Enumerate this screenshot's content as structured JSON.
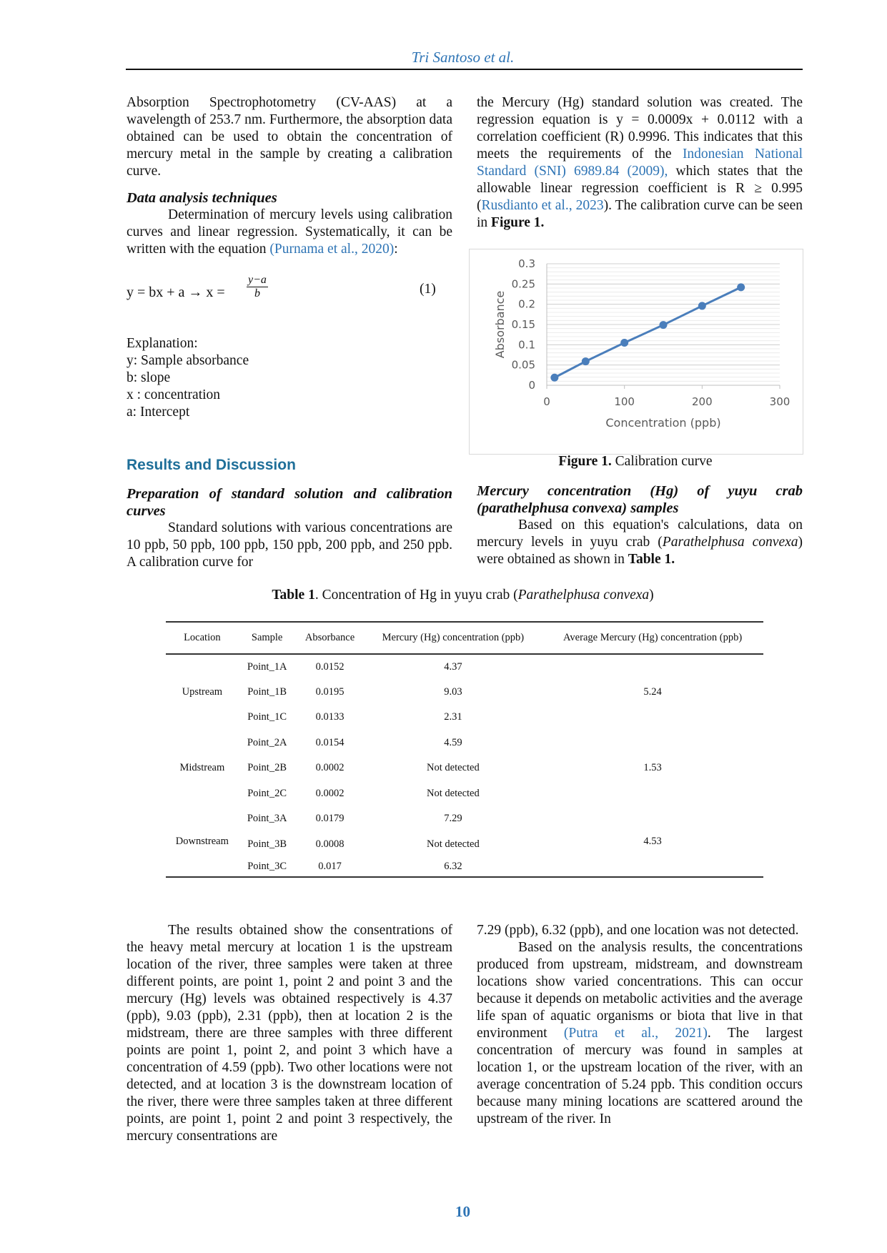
{
  "header": {
    "running_title": "Tri Santoso et al.",
    "page_number": "10"
  },
  "left_top": {
    "p1": "Absorption Spectrophotometry (CV-AAS) at a wavelength of 253.7 nm. Furthermore, the absorption data obtained can be used to obtain the concentration of mercury metal in the sample by creating a calibration curve.",
    "heading": "Data analysis techniques",
    "p2_a": "Determination of mercury levels using calibration curves and linear regression. Systematically, it can be written with the equation ",
    "p2_cite": "(Purnama et al., 2020)",
    "p2_b": ":",
    "equation": {
      "lhs": "y = bx + a →  x = ",
      "num": "y−a",
      "den": "b",
      "number": "(1)"
    },
    "explanation": [
      "Explanation:",
      "y: Sample absorbance",
      "b: slope",
      "x : concentration",
      "a: Intercept"
    ],
    "section": "Results and Discussion",
    "sub": "Preparation of standard solution and calibration curves",
    "p3": "Standard solutions with various concentrations are 10 ppb, 50 ppb, 100 ppb, 150 ppb, 200 ppb, and 250 ppb. A calibration curve for"
  },
  "right_top": {
    "p1_a": "the Mercury (Hg) standard solution was created. The regression equation is y = 0.0009x + 0.0112 with a correlation coefficient (R) 0.9996. This indicates that this meets the requirements of the ",
    "p1_cite1": "Indonesian National Standard (SNI) 6989.84 (2009),",
    "p1_b": " which states that the allowable linear regression coefficient is R ≥ 0.995 (",
    "p1_cite2": "Rusdianto et al., 2023",
    "p1_c": "). The calibration curve can be seen in ",
    "p1_fig": "Figure 1.",
    "fig_caption_bold": "Figure 1.",
    "fig_caption": " Calibration curve",
    "sub": "Mercury concentration (Hg) of yuyu crab (parathelphusa convexa) samples",
    "p2_a": "Based on this equation's calculations, data on mercury levels in yuyu crab (",
    "p2_species": "Parathelphusa convexa",
    "p2_b": ") were obtained as shown in ",
    "p2_table": "Table 1."
  },
  "chart_data": {
    "type": "line",
    "title": "",
    "xlabel": "Concentration (ppb)",
    "ylabel": "Absorbance",
    "xlim": [
      0,
      300
    ],
    "ylim": [
      0,
      0.3
    ],
    "xticks": [
      "0",
      "100",
      "200",
      "300"
    ],
    "yticks": [
      "0",
      "0.05",
      "0.1",
      "0.15",
      "0.2",
      "0.25",
      "0.3"
    ],
    "grid": true,
    "color": "#4a7ebb",
    "x": [
      10,
      50,
      100,
      150,
      200,
      250
    ],
    "y": [
      0.019,
      0.059,
      0.105,
      0.149,
      0.196,
      0.242
    ]
  },
  "table": {
    "caption_bold": "Table 1",
    "caption": ". Concentration of Hg in yuyu crab (",
    "caption_species": "Parathelphusa convexa",
    "caption_end": ")",
    "headers": [
      "Location",
      "Sample",
      "Absorbance",
      "Mercury (Hg) concentration (ppb)",
      "Average Mercury (Hg) concentration (ppb)"
    ],
    "groups": [
      {
        "location": "Upstream",
        "average": "5.24",
        "rows": [
          [
            "Point_1A",
            "0.0152",
            "4.37"
          ],
          [
            "Point_1B",
            "0.0195",
            "9.03"
          ],
          [
            "Point_1C",
            "0.0133",
            "2.31"
          ]
        ]
      },
      {
        "location": "Midstream",
        "average": "1.53",
        "rows": [
          [
            "Point_2A",
            "0.0154",
            "4.59"
          ],
          [
            "Point_2B",
            "0.0002",
            "Not detected"
          ],
          [
            "Point_2C",
            "0.0002",
            "Not detected"
          ]
        ]
      },
      {
        "location": "Downstream",
        "average": "4.53",
        "rows": [
          [
            "Point_3A",
            "0.0179",
            "7.29"
          ],
          [
            "Point_3B",
            "0.0008",
            "Not detected"
          ],
          [
            "Point_3C",
            "0.017",
            "6.32"
          ]
        ]
      }
    ]
  },
  "bottom": {
    "left": "The results obtained show the consentrations of the heavy metal mercury at location 1 is the upstream location of the river, three samples were taken at three different points, are point 1, point 2 and point 3 and the mercury (Hg) levels was obtained respectively is 4.37 (ppb), 9.03 (ppb), 2.31 (ppb), then at location 2 is the midstream, there are three samples with three different points are point 1, point 2, and point 3 which have a concentration of 4.59 (ppb). Two other locations were not detected, and at location 3 is the downstream location of the river, there were three samples taken at three different points, are point 1, point 2 and point 3 respectively, the mercury consentrations are",
    "right_p1": "7.29 (ppb), 6.32 (ppb), and one location was not detected.",
    "right_p2_a": "Based on the analysis results, the concentrations produced from upstream, midstream, and downstream locations show varied concentrations. This can occur because it depends on metabolic activities and the average life span of aquatic organisms or biota that live in that environment ",
    "right_p2_cite": "(Putra et al., 2021)",
    "right_p2_b": ". The largest concentration of mercury was found in samples at location 1, or the upstream location of the river, with an average concentration of 5.24 ppb. This condition occurs because many mining locations are scattered around the upstream of the river. In"
  }
}
